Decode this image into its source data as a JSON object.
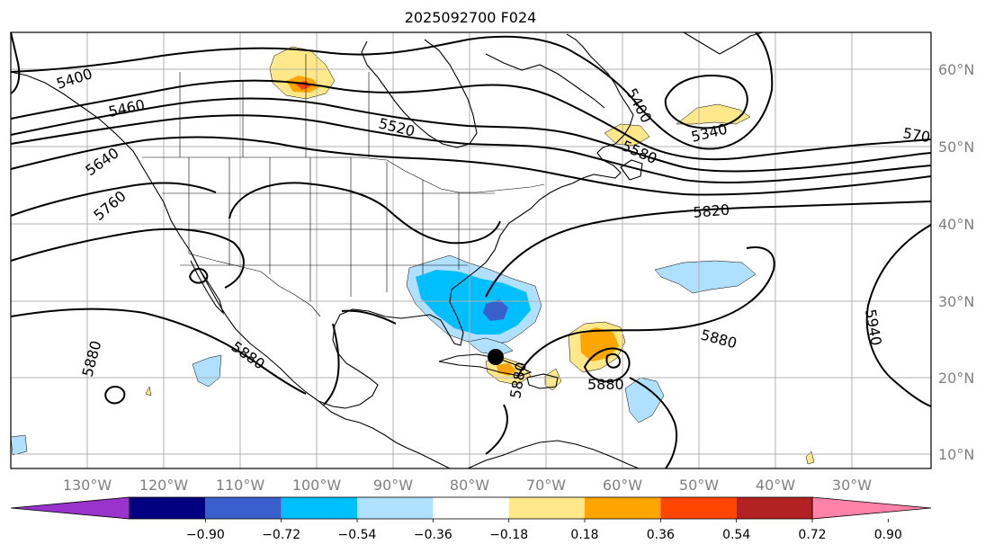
{
  "title": "2025092700 F024",
  "lon_ticks": [
    "130°W",
    "120°W",
    "110°W",
    "100°W",
    "90°W",
    "80°W",
    "70°W",
    "60°W",
    "50°W",
    "40°W",
    "30°W"
  ],
  "lat_ticks": [
    "60°N",
    "50°N",
    "40°N",
    "30°N",
    "20°N",
    "10°N"
  ],
  "colorbar": {
    "colors": [
      "#9933cc",
      "#000080",
      "#3a5fcd",
      "#00bfff",
      "#b0e0ff",
      "#ffffff",
      "#ffe88a",
      "#ffa500",
      "#ff4500",
      "#b22222",
      "#ff82ab"
    ],
    "tick_labels": [
      "−0.90",
      "−0.72",
      "−0.54",
      "−0.36",
      "−0.18",
      "0.18",
      "0.36",
      "0.54",
      "0.72",
      "0.90"
    ]
  },
  "contour_labels": [
    "5400",
    "5460",
    "5520",
    "5640",
    "5760",
    "5400",
    "5580",
    "5340",
    "570",
    "5820",
    "5880",
    "5880",
    "5880",
    "5940",
    "5880",
    "5880"
  ],
  "colors": {
    "land_line": "#000000",
    "grid": "#b0b0b0"
  }
}
